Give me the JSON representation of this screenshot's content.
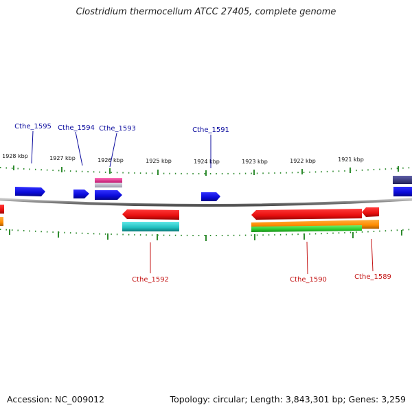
{
  "header": {
    "title": "Clostridium thermocellum ATCC 27405, complete genome"
  },
  "footer": {
    "accession": "Accession: NC_009012",
    "topology": "Topology: circular; Length: 3,843,301 bp; Genes: 3,259"
  },
  "scale": {
    "tick_labels": [
      "1928 kbp",
      "1927 kbp",
      "1926 kbp",
      "1925 kbp",
      "1924 kbp",
      "1923 kbp",
      "1922 kbp",
      "1921 kbp"
    ]
  },
  "gene_labels": {
    "forward": [
      "Cthe_1595",
      "Cthe_1594",
      "Cthe_1593",
      "Cthe_1591"
    ],
    "reverse": [
      "Cthe_1592",
      "Cthe_1590",
      "Cthe_1589"
    ]
  },
  "colors": {
    "backbone": "#8a8a8a",
    "tick": "#2e8b2e",
    "forward_cds": "#1010e0",
    "reverse_cds": "#e81010",
    "gene_feature": "#ff8c00",
    "rna_feature": "#2ecc2e",
    "misc_feature": "#20c0c0",
    "pink_feature": "#e0308a",
    "grey_feature": "#b8b8c8",
    "navy_feature": "#3a3a80"
  }
}
